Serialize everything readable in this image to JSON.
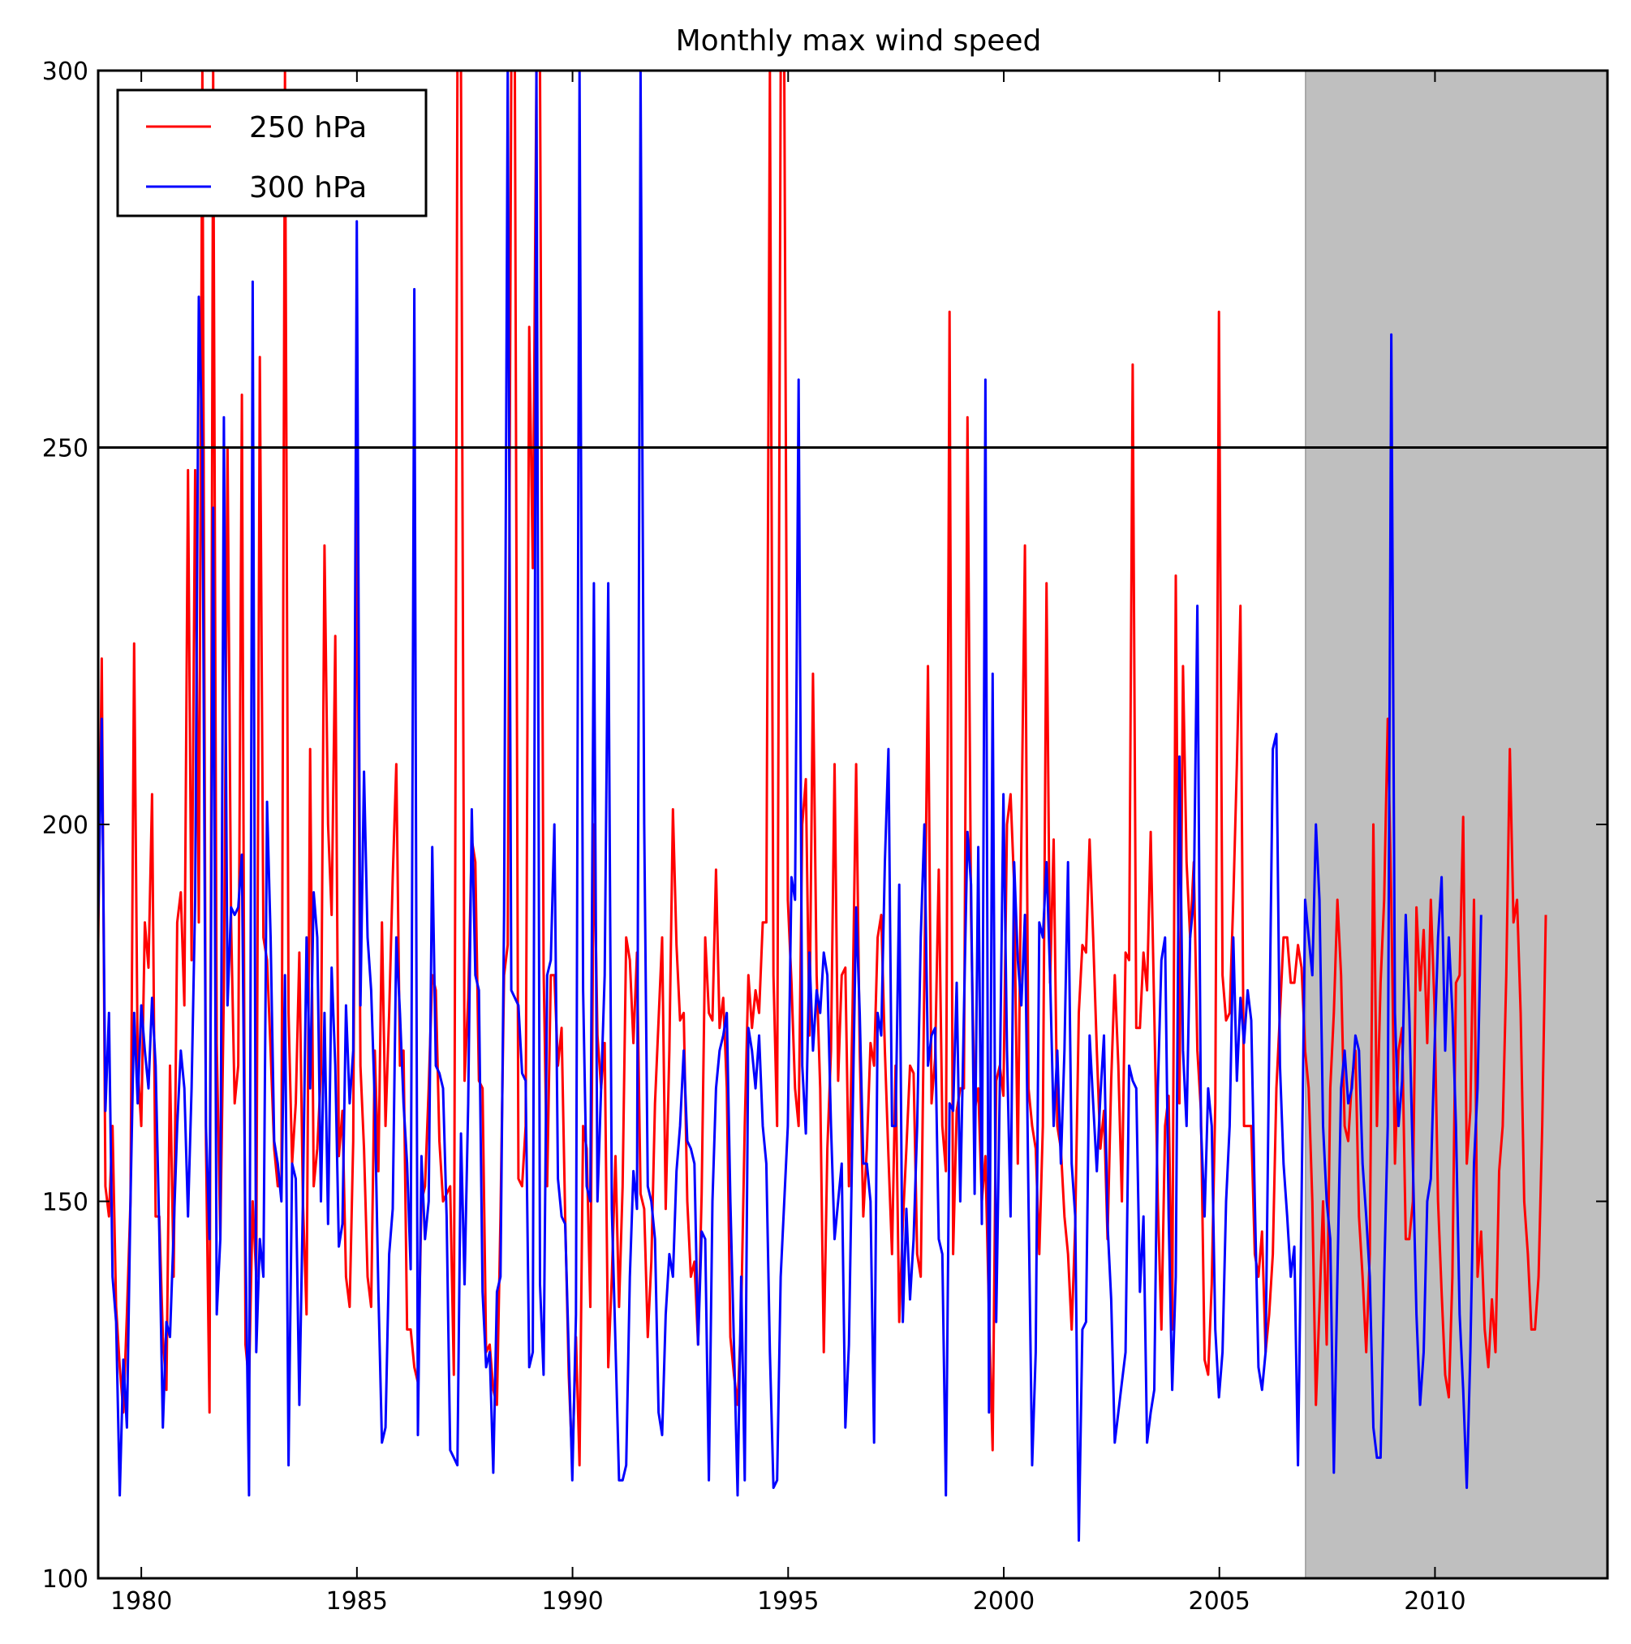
{
  "chart_data": {
    "type": "line",
    "title": "Monthly max wind speed",
    "xlabel": "",
    "ylabel": "",
    "xlim": [
      1979.0,
      2014.0
    ],
    "ylim": [
      100,
      300
    ],
    "x_ticks": [
      1980,
      1985,
      1990,
      1995,
      2000,
      2005,
      2010
    ],
    "y_ticks": [
      100,
      150,
      200,
      250,
      300
    ],
    "grid": false,
    "legend_position": "top-left",
    "reference_line": {
      "y": 250,
      "color": "#000000"
    },
    "shaded_region": {
      "x_start": 2007.0,
      "x_end": 2014.0,
      "color": "#bfbfbf"
    },
    "x_start": 1979.0,
    "x_step": 0.0833,
    "series": [
      {
        "name": "250 hPa",
        "color": "#ff0000",
        "values": [
          184,
          222,
          152,
          148,
          160,
          136,
          128,
          122,
          135,
          150,
          224,
          168,
          160,
          187,
          181,
          204,
          148,
          148,
          132,
          125,
          168,
          140,
          187,
          191,
          176,
          247,
          182,
          247,
          187,
          300,
          158,
          122,
          300,
          171,
          145,
          178,
          250,
          187,
          163,
          168,
          257,
          131,
          126,
          150,
          140,
          262,
          185,
          182,
          170,
          157,
          152,
          152,
          300,
          175,
          155,
          163,
          183,
          150,
          135,
          210,
          152,
          157,
          167,
          237,
          200,
          188,
          225,
          156,
          162,
          140,
          136,
          158,
          247,
          168,
          157,
          140,
          136,
          170,
          154,
          187,
          160,
          175,
          193,
          208,
          168,
          170,
          133,
          133,
          128,
          126,
          150,
          152,
          165,
          180,
          178,
          158,
          150,
          151,
          152,
          127,
          300,
          300,
          166,
          177,
          198,
          195,
          166,
          165,
          130,
          131,
          125,
          123,
          148,
          180,
          184,
          300,
          300,
          153,
          152,
          160,
          266,
          234,
          300,
          300,
          181,
          152,
          180,
          180,
          168,
          173,
          148,
          127,
          115,
          132,
          115,
          160,
          157,
          136,
          200,
          172,
          165,
          171,
          128,
          140,
          156,
          136,
          152,
          185,
          182,
          171,
          183,
          151,
          149,
          132,
          142,
          163,
          174,
          185,
          149,
          170,
          202,
          184,
          174,
          175,
          150,
          140,
          142,
          131,
          151,
          185,
          175,
          174,
          194,
          173,
          177,
          165,
          132,
          127,
          123,
          135,
          160,
          180,
          173,
          178,
          175,
          187,
          187,
          300,
          180,
          160,
          300,
          300,
          190,
          179,
          165,
          160,
          200,
          206,
          172,
          220,
          180,
          165,
          130,
          157,
          170,
          208,
          166,
          180,
          181,
          152,
          175,
          208,
          170,
          148,
          157,
          171,
          168,
          185,
          188,
          170,
          156,
          143,
          168,
          134,
          147,
          157,
          168,
          167,
          143,
          140,
          180,
          221,
          163,
          169,
          194,
          160,
          154,
          268,
          143,
          162,
          165,
          165,
          254,
          188,
          162,
          165,
          150,
          156,
          135,
          117,
          166,
          168,
          164,
          200,
          204,
          192,
          155,
          198,
          237,
          165,
          160,
          157,
          143,
          160,
          232,
          179,
          198,
          160,
          157,
          148,
          143,
          133,
          147,
          175,
          184,
          183,
          198,
          185,
          170,
          157,
          162,
          145,
          166,
          180,
          168,
          150,
          183,
          182,
          261,
          173,
          173,
          183,
          178,
          199,
          175,
          150,
          133,
          160,
          164,
          133,
          233,
          163,
          221,
          195,
          185,
          195,
          170,
          162,
          129,
          127,
          139,
          163,
          268,
          180,
          174,
          175,
          190,
          208,
          229,
          160,
          160,
          160,
          143,
          140,
          146,
          130,
          135,
          143,
          165,
          175,
          185,
          185,
          179,
          179,
          184,
          181,
          170,
          165,
          150,
          123,
          136,
          150,
          131,
          165,
          175,
          190,
          180,
          160,
          158,
          166,
          170,
          148,
          140,
          130,
          143,
          200,
          160,
          179,
          190,
          214,
          190,
          155,
          170,
          173,
          145,
          145,
          150,
          189,
          178,
          186,
          171,
          190,
          176,
          150,
          138,
          127,
          124,
          140,
          179,
          180,
          201,
          155,
          162,
          190,
          140,
          146,
          133,
          128,
          137,
          130,
          154,
          160,
          180,
          210,
          187,
          190,
          175,
          150,
          143,
          133,
          133,
          140,
          160,
          188
        ]
      },
      {
        "name": "300 hPa",
        "color": "#0000ff",
        "values": [
          187,
          214,
          162,
          175,
          140,
          134,
          111,
          129,
          120,
          150,
          175,
          163,
          176,
          170,
          165,
          177,
          168,
          146,
          120,
          134,
          132,
          146,
          160,
          170,
          165,
          148,
          165,
          190,
          270,
          250,
          160,
          145,
          242,
          135,
          145,
          254,
          176,
          189,
          188,
          189,
          196,
          145,
          111,
          272,
          130,
          145,
          140,
          203,
          185,
          158,
          155,
          150,
          180,
          115,
          155,
          153,
          123,
          150,
          185,
          165,
          191,
          185,
          150,
          175,
          147,
          181,
          168,
          144,
          147,
          176,
          163,
          170,
          280,
          176,
          207,
          185,
          178,
          163,
          138,
          118,
          120,
          143,
          149,
          185,
          175,
          163,
          155,
          141,
          271,
          119,
          156,
          145,
          150,
          197,
          168,
          167,
          165,
          148,
          117,
          116,
          115,
          159,
          139,
          163,
          202,
          180,
          178,
          138,
          128,
          130,
          114,
          138,
          140,
          188,
          300,
          178,
          177,
          176,
          167,
          166,
          128,
          130,
          300,
          139,
          127,
          180,
          182,
          200,
          153,
          148,
          147,
          130,
          113,
          135,
          300,
          178,
          152,
          150,
          232,
          150,
          165,
          180,
          232,
          149,
          131,
          113,
          113,
          115,
          140,
          154,
          149,
          300,
          200,
          152,
          150,
          145,
          122,
          119,
          135,
          143,
          140,
          154,
          160,
          170,
          158,
          157,
          155,
          131,
          146,
          145,
          113,
          150,
          165,
          170,
          172,
          175,
          150,
          131,
          111,
          140,
          113,
          173,
          170,
          165,
          172,
          160,
          155,
          130,
          112,
          113,
          140,
          150,
          160,
          193,
          190,
          259,
          168,
          159,
          183,
          170,
          178,
          175,
          183,
          180,
          160,
          145,
          150,
          155,
          120,
          131,
          160,
          189,
          175,
          155,
          155,
          150,
          118,
          175,
          172,
          195,
          210,
          160,
          160,
          192,
          134,
          149,
          137,
          145,
          160,
          185,
          200,
          168,
          172,
          173,
          145,
          143,
          111,
          163,
          162,
          179,
          150,
          175,
          199,
          192,
          151,
          197,
          147,
          259,
          122,
          220,
          134,
          165,
          204,
          170,
          148,
          195,
          182,
          176,
          188,
          150,
          115,
          130,
          187,
          185,
          195,
          180,
          160,
          170,
          155,
          170,
          195,
          155,
          148,
          105,
          133,
          134,
          172,
          163,
          154,
          164,
          172,
          147,
          137,
          118,
          122,
          126,
          130,
          168,
          166,
          165,
          138,
          148,
          118,
          122,
          125,
          165,
          182,
          185,
          148,
          125,
          140,
          209,
          170,
          160,
          185,
          190,
          229,
          160,
          148,
          165,
          160,
          133,
          124,
          130,
          150,
          160,
          185,
          166,
          177,
          171,
          178,
          174,
          150,
          128,
          125,
          130,
          170,
          210,
          212,
          168,
          155,
          148,
          140,
          144,
          115,
          150,
          190,
          185,
          180,
          200,
          190,
          160,
          150,
          145,
          114,
          140,
          165,
          170,
          163,
          165,
          172,
          170,
          155,
          148,
          140,
          120,
          116,
          116,
          140,
          160,
          265,
          175,
          160,
          166,
          188,
          175,
          155,
          135,
          123,
          130,
          150,
          153,
          170,
          185,
          193,
          170,
          185,
          175,
          160,
          135,
          125,
          112,
          130,
          155,
          165,
          188
        ]
      }
    ]
  }
}
